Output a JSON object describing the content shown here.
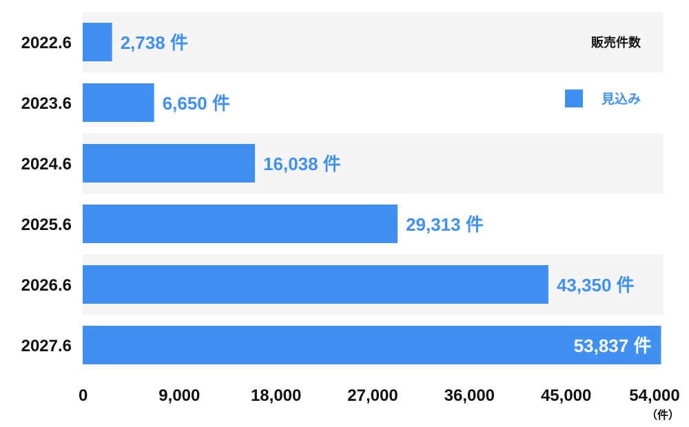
{
  "chart_data": {
    "type": "bar",
    "orientation": "horizontal",
    "categories": [
      "2022.6",
      "2023.6",
      "2024.6",
      "2025.6",
      "2026.6",
      "2027.6"
    ],
    "series": [
      {
        "name": "見込み",
        "values": [
          2738,
          6650,
          16038,
          29313,
          43350,
          53837
        ]
      }
    ],
    "value_labels": [
      "2,738 件",
      "6,650 件",
      "16,038 件",
      "29,313 件",
      "43,350 件",
      "53,837 件"
    ],
    "xlim": [
      0,
      54000
    ],
    "xticks": [
      0,
      9000,
      18000,
      27000,
      36000,
      45000,
      54000
    ],
    "xtick_labels": [
      "0",
      "9,000",
      "18,000",
      "27,000",
      "36,000",
      "45,000",
      "54,000"
    ],
    "xunit": "（件）",
    "legend": {
      "title": "販売件数",
      "placement": "top-right"
    },
    "colors": {
      "bar": "#4090F2",
      "band": "#F5F5F5",
      "text": "#111111",
      "label_inside": "#FFFFFF"
    },
    "grid": false
  }
}
